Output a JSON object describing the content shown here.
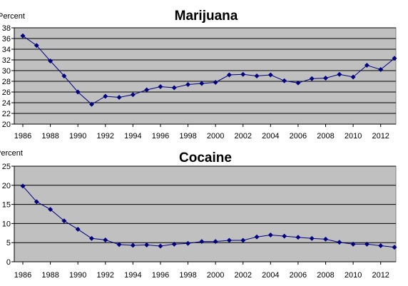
{
  "chart_data": [
    {
      "type": "line",
      "title": "Marijuana",
      "ylabel": "Percent",
      "xlabel": "",
      "ylim": [
        20,
        38
      ],
      "yticks": [
        20,
        22,
        24,
        26,
        28,
        30,
        32,
        34,
        36,
        38
      ],
      "xlim": [
        1986,
        2013
      ],
      "xticks": [
        1986,
        1988,
        1990,
        1992,
        1994,
        1996,
        1998,
        2000,
        2002,
        2004,
        2006,
        2008,
        2010,
        2012
      ],
      "grid": true,
      "plot_background": "#c0c0c0",
      "series_color": "#000080",
      "x": [
        1986,
        1987,
        1988,
        1989,
        1990,
        1991,
        1992,
        1993,
        1994,
        1995,
        1996,
        1997,
        1998,
        1999,
        2000,
        2001,
        2002,
        2003,
        2004,
        2005,
        2006,
        2007,
        2008,
        2009,
        2010,
        2011,
        2012,
        2013
      ],
      "values": [
        36.5,
        34.7,
        31.8,
        29.0,
        26.0,
        23.7,
        25.2,
        25.0,
        25.5,
        26.4,
        27.0,
        26.8,
        27.4,
        27.6,
        27.8,
        29.2,
        29.3,
        29.0,
        29.2,
        28.1,
        27.7,
        28.5,
        28.6,
        29.3,
        28.8,
        31.0,
        30.2,
        32.3
      ]
    },
    {
      "type": "line",
      "title": "Cocaine",
      "ylabel": "Percent",
      "xlabel": "",
      "ylim": [
        0,
        25
      ],
      "yticks": [
        0,
        5,
        10,
        15,
        20,
        25
      ],
      "xlim": [
        1986,
        2013
      ],
      "xticks": [
        1986,
        1988,
        1990,
        1992,
        1994,
        1996,
        1998,
        2000,
        2002,
        2004,
        2006,
        2008,
        2010,
        2012
      ],
      "grid": true,
      "plot_background": "#c0c0c0",
      "series_color": "#000080",
      "x": [
        1986,
        1987,
        1988,
        1989,
        1990,
        1991,
        1992,
        1993,
        1994,
        1995,
        1996,
        1997,
        1998,
        1999,
        2000,
        2001,
        2002,
        2003,
        2004,
        2005,
        2006,
        2007,
        2008,
        2009,
        2010,
        2011,
        2012,
        2013
      ],
      "values": [
        19.8,
        15.7,
        13.7,
        10.7,
        8.5,
        6.1,
        5.7,
        4.5,
        4.3,
        4.4,
        4.1,
        4.6,
        4.8,
        5.3,
        5.3,
        5.6,
        5.6,
        6.5,
        7.0,
        6.7,
        6.4,
        6.1,
        5.9,
        5.1,
        4.6,
        4.6,
        4.2,
        3.8
      ]
    }
  ]
}
